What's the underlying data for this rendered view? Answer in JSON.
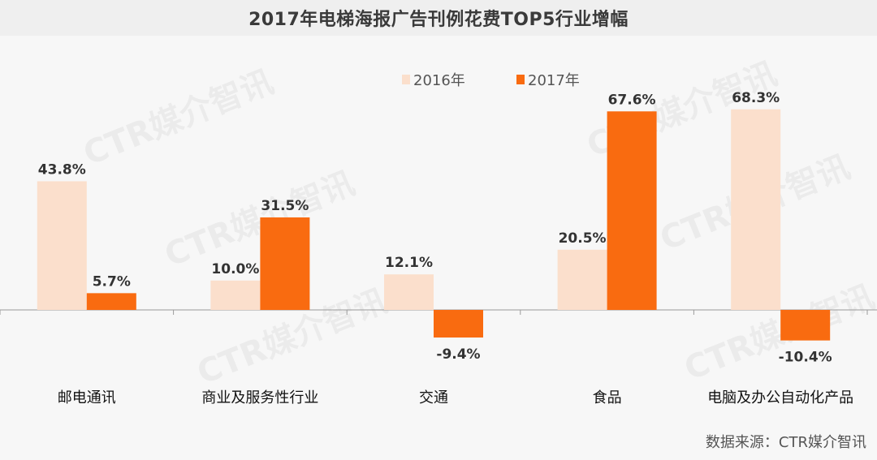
{
  "colors": {
    "y2016": "#fbdfcc",
    "y2017": "#f96b10",
    "axis": "#9a9a9a"
  },
  "watermark": "CTR媒介智讯",
  "source": "数据来源：CTR媒介智讯",
  "chart_data": {
    "type": "bar",
    "title": "2017年电梯海报广告刊例花费TOP5行业增幅",
    "categories": [
      "邮电通讯",
      "商业及服务性行业",
      "交通",
      "食品",
      "电脑及办公自动化产品"
    ],
    "series": [
      {
        "name": "2016年",
        "values": [
          43.8,
          10.0,
          12.1,
          20.5,
          68.3
        ],
        "labels": [
          "43.8%",
          "10.0%",
          "12.1%",
          "20.5%",
          "68.3%"
        ]
      },
      {
        "name": "2017年",
        "values": [
          5.7,
          31.5,
          -9.4,
          67.6,
          -10.4
        ],
        "labels": [
          "5.7%",
          "31.5%",
          "-9.4%",
          "67.6%",
          "-10.4%"
        ]
      }
    ],
    "ylim": [
      -20,
      80
    ],
    "legend": "top-center",
    "grid": false,
    "unit": "%"
  }
}
